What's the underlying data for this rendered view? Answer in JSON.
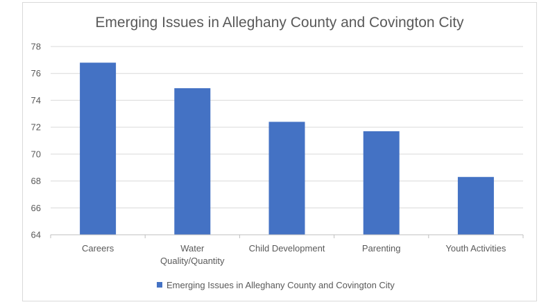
{
  "chart_data": {
    "type": "bar",
    "title": "Emerging Issues in Alleghany County and Covington City",
    "xlabel": "",
    "ylabel": "",
    "categories": [
      "Careers",
      "Water Quality/Quantity",
      "Child Development",
      "Parenting",
      "Youth Activities"
    ],
    "series": [
      {
        "name": "Emerging Issues in Alleghany County and Covington City",
        "values": [
          76.8,
          74.9,
          72.4,
          71.7,
          68.3
        ],
        "color": "#4472c4"
      }
    ],
    "ylim": [
      64,
      78
    ],
    "yticks": [
      64,
      66,
      68,
      70,
      72,
      74,
      76,
      78
    ],
    "grid": true,
    "legend_position": "bottom"
  },
  "colors": {
    "bar": "#4472c4",
    "grid": "#d9d9d9",
    "text": "#595959",
    "axis": "#bfbfbf"
  }
}
